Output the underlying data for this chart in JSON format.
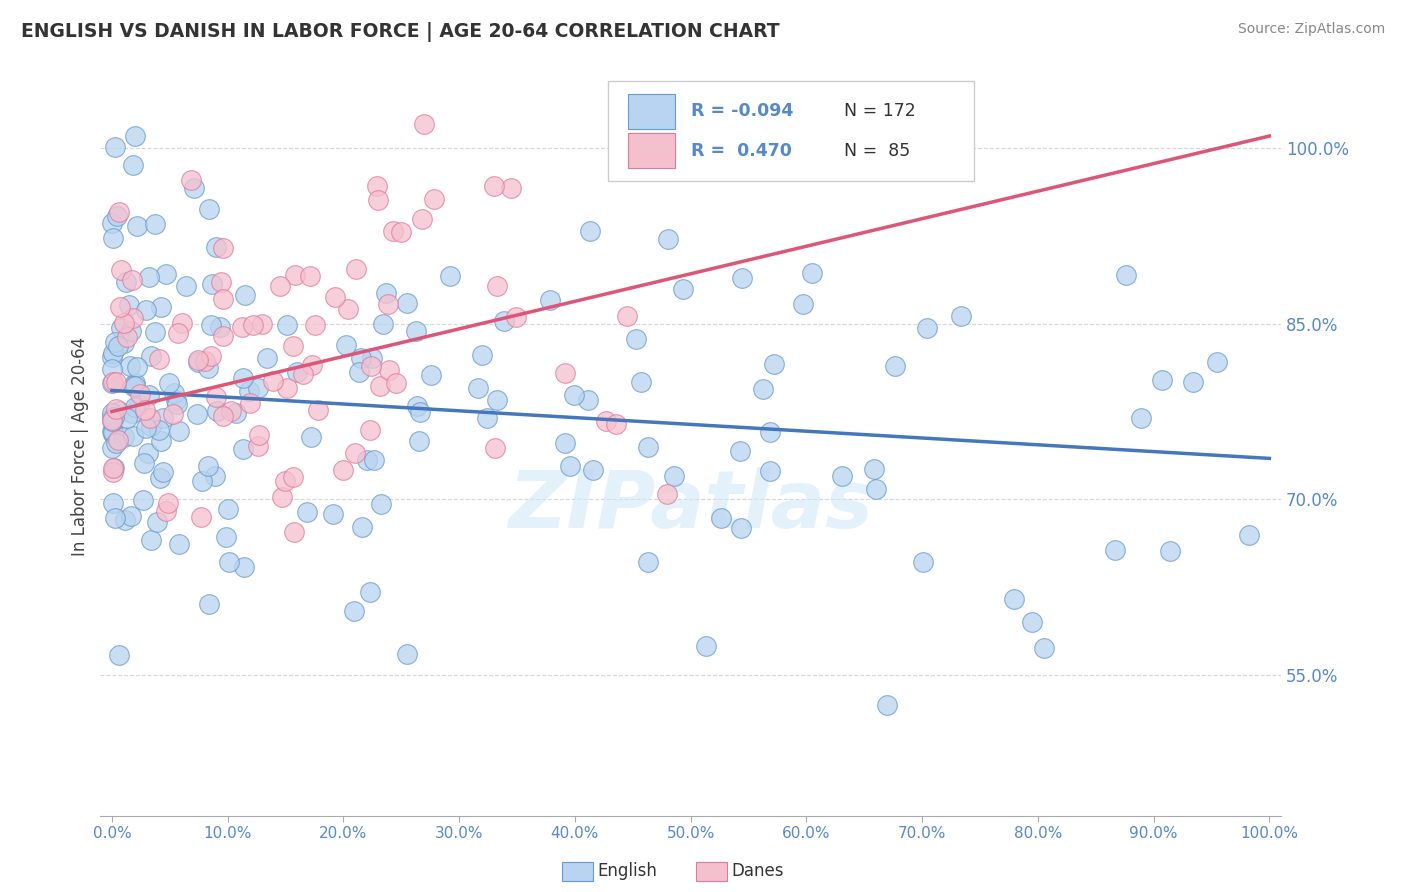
{
  "title": "ENGLISH VS DANISH IN LABOR FORCE | AGE 20-64 CORRELATION CHART",
  "source": "Source: ZipAtlas.com",
  "ylabel": "In Labor Force | Age 20-64",
  "legend_label1": "English",
  "legend_label2": "Danes",
  "r1": "-0.094",
  "n1": "172",
  "r2": "0.470",
  "n2": "85",
  "color_english_fill": "#b8d4f0",
  "color_english_edge": "#6699cc",
  "color_english_line": "#4477bb",
  "color_danes_fill": "#f5c0ce",
  "color_danes_edge": "#e0789a",
  "color_danes_line": "#dd5577",
  "color_axis_labels": "#5588cc",
  "color_grid": "#cccccc",
  "watermark_text": "ZIPatlas",
  "watermark_color": "#d0e8f8",
  "ylim_min": 0.43,
  "ylim_max": 1.06,
  "xlim_min": -0.01,
  "xlim_max": 1.01,
  "ytick_values": [
    0.55,
    0.7,
    0.85,
    1.0
  ],
  "ytick_labels": [
    "55.0%",
    "70.0%",
    "85.0%",
    "100.0%"
  ],
  "xtick_values": [
    0.0,
    0.1,
    0.2,
    0.3,
    0.4,
    0.5,
    0.6,
    0.7,
    0.8,
    0.9,
    1.0
  ],
  "xtick_labels": [
    "0.0%",
    "10.0%",
    "20.0%",
    "30.0%",
    "40.0%",
    "50.0%",
    "60.0%",
    "70.0%",
    "80.0%",
    "90.0%",
    "100.0%"
  ],
  "eng_line_x0": 0.0,
  "eng_line_x1": 1.0,
  "eng_line_y0": 0.793,
  "eng_line_y1": 0.735,
  "dan_line_x0": 0.0,
  "dan_line_x1": 1.0,
  "dan_line_y0": 0.775,
  "dan_line_y1": 1.01
}
